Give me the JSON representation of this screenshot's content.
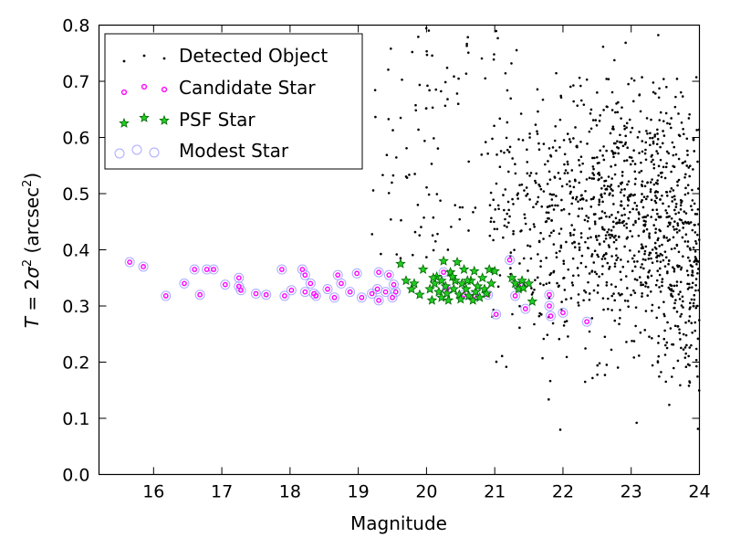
{
  "chart_data": {
    "type": "scatter",
    "xlabel": "Magnitude",
    "ylabel_parts": {
      "var": "T",
      "eq": " = 2",
      "sigma": "σ",
      "exp": "2",
      "unit_open": " (arcsec",
      "unit_exp": "2",
      "unit_close": ")"
    },
    "xlim": [
      15.2,
      24
    ],
    "ylim": [
      0.0,
      0.8
    ],
    "xticks": [
      "16",
      "17",
      "18",
      "19",
      "20",
      "21",
      "22",
      "23",
      "24"
    ],
    "yticks": [
      "0.0",
      "0.1",
      "0.2",
      "0.3",
      "0.4",
      "0.5",
      "0.6",
      "0.7",
      "0.8"
    ],
    "legend_position": "top-left",
    "legend": [
      {
        "label": "Detected Object",
        "marker": "dot",
        "color": "#000000"
      },
      {
        "label": "Candidate Star",
        "marker": "small-circle",
        "color": "#ff00ff"
      },
      {
        "label": "PSF Star",
        "marker": "star",
        "color": "#008000"
      },
      {
        "label": "Modest Star",
        "marker": "open-circle",
        "color": "#aaaaff"
      }
    ],
    "series": [
      {
        "name": "Candidate Star",
        "points": [
          [
            15.65,
            0.378
          ],
          [
            15.85,
            0.37
          ],
          [
            16.18,
            0.318
          ],
          [
            16.45,
            0.34
          ],
          [
            16.6,
            0.365
          ],
          [
            16.68,
            0.32
          ],
          [
            16.78,
            0.365
          ],
          [
            16.88,
            0.365
          ],
          [
            17.05,
            0.338
          ],
          [
            17.25,
            0.35
          ],
          [
            17.25,
            0.335
          ],
          [
            17.28,
            0.328
          ],
          [
            17.5,
            0.322
          ],
          [
            17.65,
            0.32
          ],
          [
            17.88,
            0.365
          ],
          [
            17.92,
            0.318
          ],
          [
            18.02,
            0.328
          ],
          [
            18.18,
            0.365
          ],
          [
            18.22,
            0.355
          ],
          [
            18.22,
            0.325
          ],
          [
            18.3,
            0.34
          ],
          [
            18.35,
            0.322
          ],
          [
            18.38,
            0.318
          ],
          [
            18.55,
            0.33
          ],
          [
            18.65,
            0.315
          ],
          [
            18.7,
            0.355
          ],
          [
            18.75,
            0.34
          ],
          [
            18.88,
            0.325
          ],
          [
            18.98,
            0.358
          ],
          [
            19.05,
            0.315
          ],
          [
            19.2,
            0.322
          ],
          [
            19.28,
            0.33
          ],
          [
            19.3,
            0.36
          ],
          [
            19.3,
            0.31
          ],
          [
            19.4,
            0.325
          ],
          [
            19.45,
            0.355
          ],
          [
            19.5,
            0.315
          ],
          [
            19.52,
            0.338
          ],
          [
            19.55,
            0.325
          ],
          [
            20.25,
            0.36
          ],
          [
            21.02,
            0.285
          ],
          [
            21.22,
            0.382
          ],
          [
            21.45,
            0.295
          ],
          [
            21.8,
            0.32
          ],
          [
            21.8,
            0.3
          ],
          [
            21.82,
            0.282
          ],
          [
            22.0,
            0.288
          ],
          [
            22.35,
            0.272
          ],
          [
            20.3,
            0.33
          ],
          [
            20.55,
            0.32
          ],
          [
            20.7,
            0.318
          ],
          [
            20.9,
            0.32
          ],
          [
            21.3,
            0.318
          ],
          [
            21.35,
            0.335
          ]
        ]
      },
      {
        "name": "PSF Star",
        "points": [
          [
            19.62,
            0.375
          ],
          [
            19.7,
            0.345
          ],
          [
            19.78,
            0.33
          ],
          [
            19.82,
            0.34
          ],
          [
            19.9,
            0.32
          ],
          [
            19.95,
            0.365
          ],
          [
            20.05,
            0.33
          ],
          [
            20.08,
            0.31
          ],
          [
            20.12,
            0.34
          ],
          [
            20.15,
            0.352
          ],
          [
            20.18,
            0.325
          ],
          [
            20.22,
            0.315
          ],
          [
            20.22,
            0.345
          ],
          [
            20.25,
            0.38
          ],
          [
            20.28,
            0.335
          ],
          [
            20.3,
            0.322
          ],
          [
            20.32,
            0.31
          ],
          [
            20.35,
            0.36
          ],
          [
            20.4,
            0.33
          ],
          [
            20.42,
            0.345
          ],
          [
            20.45,
            0.378
          ],
          [
            20.48,
            0.32
          ],
          [
            20.5,
            0.312
          ],
          [
            20.52,
            0.34
          ],
          [
            20.55,
            0.365
          ],
          [
            20.58,
            0.33
          ],
          [
            20.62,
            0.318
          ],
          [
            20.65,
            0.345
          ],
          [
            20.68,
            0.31
          ],
          [
            20.7,
            0.362
          ],
          [
            20.72,
            0.325
          ],
          [
            20.75,
            0.335
          ],
          [
            20.78,
            0.315
          ],
          [
            20.82,
            0.35
          ],
          [
            20.85,
            0.33
          ],
          [
            20.88,
            0.322
          ],
          [
            20.92,
            0.365
          ],
          [
            20.95,
            0.34
          ],
          [
            21.0,
            0.362
          ],
          [
            21.25,
            0.35
          ],
          [
            21.3,
            0.34
          ],
          [
            21.35,
            0.33
          ],
          [
            21.4,
            0.345
          ],
          [
            21.42,
            0.332
          ],
          [
            21.5,
            0.34
          ],
          [
            21.55,
            0.308
          ],
          [
            20.1,
            0.35
          ],
          [
            20.6,
            0.345
          ],
          [
            20.38,
            0.352
          ]
        ]
      }
    ]
  }
}
